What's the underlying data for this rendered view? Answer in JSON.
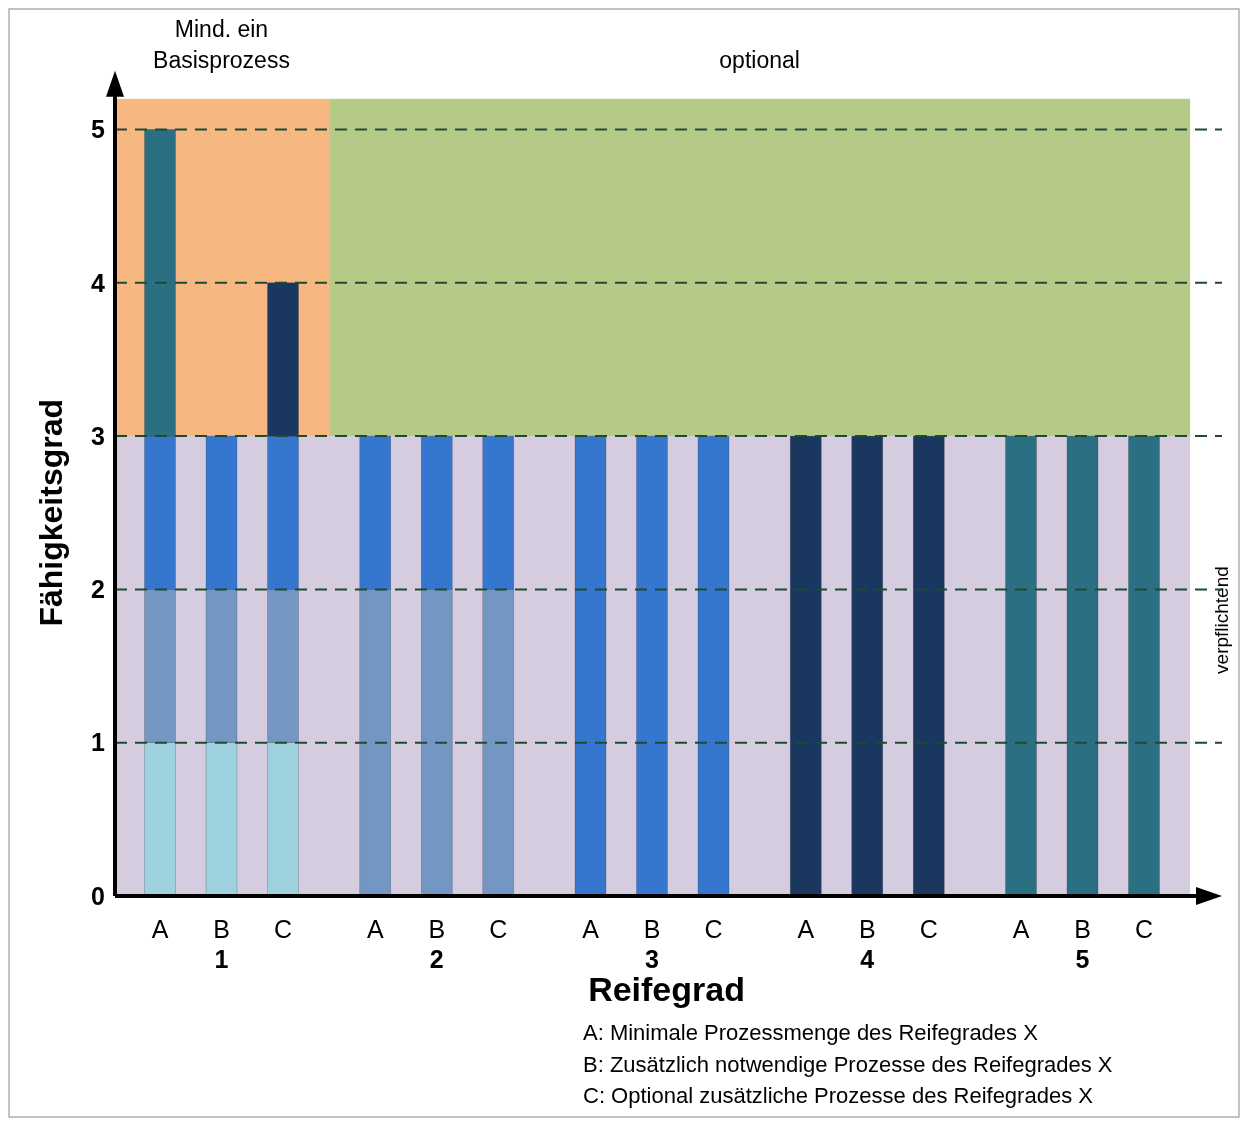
{
  "chart_data": {
    "type": "bar",
    "stacked": true,
    "xlabel": "Reifegrad",
    "ylabel": "Fähigkeitsgrad",
    "categories": [
      "A",
      "B",
      "C",
      "A",
      "B",
      "C",
      "A",
      "B",
      "C",
      "A",
      "B",
      "C",
      "A",
      "B",
      "C"
    ],
    "series": [
      {
        "color": "#9dd1dd",
        "values": [
          1,
          1,
          1,
          0,
          0,
          0,
          0,
          0,
          0,
          0,
          0,
          0,
          0,
          0,
          0
        ]
      },
      {
        "color": "#7496c2",
        "values": [
          1,
          1,
          1,
          2,
          2,
          2,
          0,
          0,
          0,
          0,
          0,
          0,
          0,
          0,
          0
        ]
      },
      {
        "color": "#3577cf",
        "values": [
          1,
          1,
          1,
          1,
          1,
          1,
          3,
          3,
          3,
          0,
          0,
          0,
          0,
          0,
          0
        ]
      },
      {
        "color": "#1a3760",
        "values": [
          0,
          0,
          1,
          0,
          0,
          0,
          0,
          0,
          0,
          3,
          3,
          3,
          0,
          0,
          0
        ]
      },
      {
        "color": "#2a6f82",
        "values": [
          2,
          0,
          0,
          0,
          0,
          0,
          0,
          0,
          0,
          0,
          0,
          0,
          3,
          3,
          3
        ]
      }
    ],
    "ylim": [
      0,
      5.2
    ],
    "yticks": [
      0,
      1,
      2,
      3,
      4,
      5
    ],
    "grid": "y",
    "bands": [
      {
        "axis": "y",
        "from": 0,
        "to": 3,
        "label": "verpflichtend",
        "color": "#d5cce0"
      }
    ],
    "annotations": [
      "1",
      "2",
      "3",
      "4",
      "5",
      "Mind. ein\nBasisprozess",
      "optional",
      "A: Minimale Prozessmenge des Reifegrades X",
      "B: Zusätzlich notwendige Prozesse des Reifegrades X",
      "C: Optional zusätzliche Prozesse des Reifegrades X"
    ]
  }
}
